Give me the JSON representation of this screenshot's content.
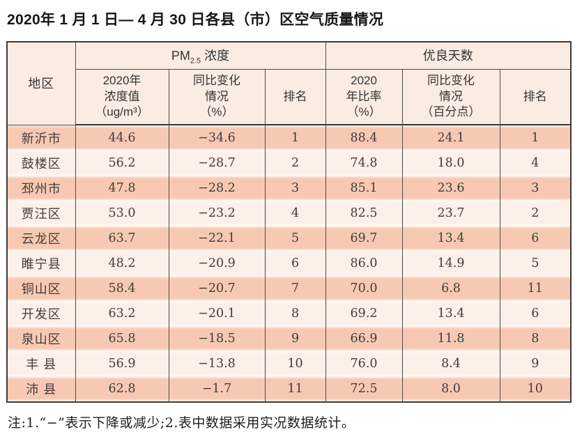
{
  "title": "2020年 1 月 1 日— 4 月 30 日各县（市）区空气质量情况",
  "table": {
    "header": {
      "region": "地区",
      "pm_group": {
        "base": "PM",
        "sub": "2.5",
        "rest": " 浓度"
      },
      "good_group": "优良天数",
      "sub_headers": [
        "2020年\n浓度值\n（ug/m³）",
        "同比变化\n情况\n（%）",
        "排名",
        "2020\n年比率\n（%）",
        "同比变化\n情况\n（百分点）",
        "排名"
      ]
    },
    "rows": [
      [
        "新沂市",
        "44.6",
        "−34.6",
        "1",
        "88.4",
        "24.1",
        "1"
      ],
      [
        "鼓楼区",
        "56.2",
        "−28.7",
        "2",
        "74.8",
        "18.0",
        "4"
      ],
      [
        "邳州市",
        "47.8",
        "−28.2",
        "3",
        "85.1",
        "23.6",
        "3"
      ],
      [
        "贾汪区",
        "53.0",
        "−23.2",
        "4",
        "82.5",
        "23.7",
        "2"
      ],
      [
        "云龙区",
        "63.7",
        "−22.1",
        "5",
        "69.7",
        "13.4",
        "6"
      ],
      [
        "睢宁县",
        "48.2",
        "−20.9",
        "6",
        "86.0",
        "14.9",
        "5"
      ],
      [
        "铜山区",
        "58.4",
        "−20.7",
        "7",
        "70.0",
        "6.8",
        "11"
      ],
      [
        "开发区",
        "63.2",
        "−20.1",
        "8",
        "69.2",
        "13.4",
        "6"
      ],
      [
        "泉山区",
        "65.8",
        "−18.5",
        "9",
        "66.9",
        "11.8",
        "8"
      ],
      [
        "丰 县",
        "56.9",
        "−13.8",
        "10",
        "76.0",
        "8.4",
        "9"
      ],
      [
        "沛 县",
        "62.8",
        "−1.7",
        "11",
        "72.5",
        "8.0",
        "10"
      ]
    ]
  },
  "note": "注:1.“−”表示下降或减少;2.表中数据采用实况数据统计。",
  "colors": {
    "header_bg": "#fbece3",
    "row_odd": "#f7c9b3",
    "row_even": "#fcf0e9",
    "border": "#4a4a4a"
  }
}
